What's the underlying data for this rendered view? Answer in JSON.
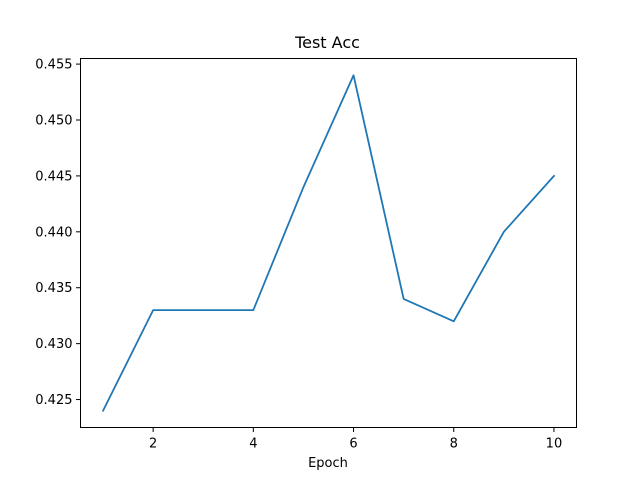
{
  "chart_data": {
    "type": "line",
    "title": "Test Acc",
    "xlabel": "Epoch",
    "ylabel": "",
    "x": [
      1,
      2,
      3,
      4,
      5,
      6,
      7,
      8,
      9,
      10
    ],
    "series": [
      {
        "values": [
          0.424,
          0.433,
          0.433,
          0.433,
          0.444,
          0.454,
          0.434,
          0.432,
          0.44,
          0.445
        ],
        "color": "#1f77b4"
      }
    ],
    "xlim": [
      0.55,
      10.45
    ],
    "ylim": [
      0.4225,
      0.4555
    ],
    "xticks": [
      2,
      4,
      6,
      8,
      10
    ],
    "xtick_labels": [
      "2",
      "4",
      "6",
      "8",
      "10"
    ],
    "yticks": [
      0.425,
      0.43,
      0.435,
      0.44,
      0.445,
      0.45,
      0.455
    ],
    "ytick_labels": [
      "0.425",
      "0.430",
      "0.435",
      "0.440",
      "0.445",
      "0.450",
      "0.455"
    ],
    "grid": false,
    "legend": "none"
  }
}
